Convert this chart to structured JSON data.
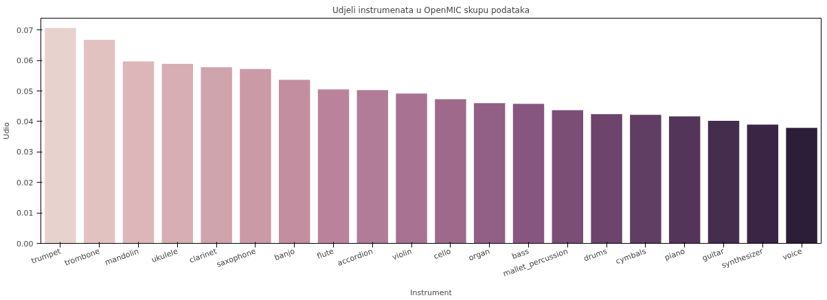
{
  "chart_data": {
    "type": "bar",
    "title": "Udjeli instrumenata u OpenMIC skupu podataka",
    "xlabel": "Instrument",
    "ylabel": "Udio",
    "categories": [
      "trumpet",
      "trombone",
      "mandolin",
      "ukulele",
      "clarinet",
      "saxophone",
      "banjo",
      "flute",
      "accordion",
      "violin",
      "cello",
      "organ",
      "bass",
      "mallet_percussion",
      "drums",
      "cymbals",
      "piano",
      "guitar",
      "synthesizer",
      "voice"
    ],
    "values": [
      0.0707,
      0.0668,
      0.0597,
      0.0589,
      0.0578,
      0.0572,
      0.0537,
      0.0505,
      0.0503,
      0.0492,
      0.0473,
      0.046,
      0.0458,
      0.0437,
      0.0424,
      0.0422,
      0.0417,
      0.0402,
      0.039,
      0.0379
    ],
    "colors": [
      "#e8d2ce",
      "#e2c2c0",
      "#dcb6b8",
      "#d6aeb3",
      "#d0a4ac",
      "#cb9aa7",
      "#c38fa0",
      "#bb839b",
      "#b17c97",
      "#a87293",
      "#9e698b",
      "#925f86",
      "#875680",
      "#7a4e75",
      "#6d446b",
      "#603d63",
      "#54355a",
      "#452d4e",
      "#3a2544",
      "#2d1e38"
    ],
    "ylim": [
      0,
      0.0739
    ],
    "yticks": [
      {
        "value": 0,
        "label": "0.00"
      },
      {
        "value": 0.01,
        "label": "0.01"
      },
      {
        "value": 0.02,
        "label": "0.02"
      },
      {
        "value": 0.03,
        "label": "0.03"
      },
      {
        "value": 0.04,
        "label": "0.04"
      },
      {
        "value": 0.05,
        "label": "0.05"
      },
      {
        "value": 0.06,
        "label": "0.06"
      },
      {
        "value": 0.07,
        "label": "0.07"
      }
    ],
    "grid": false
  }
}
